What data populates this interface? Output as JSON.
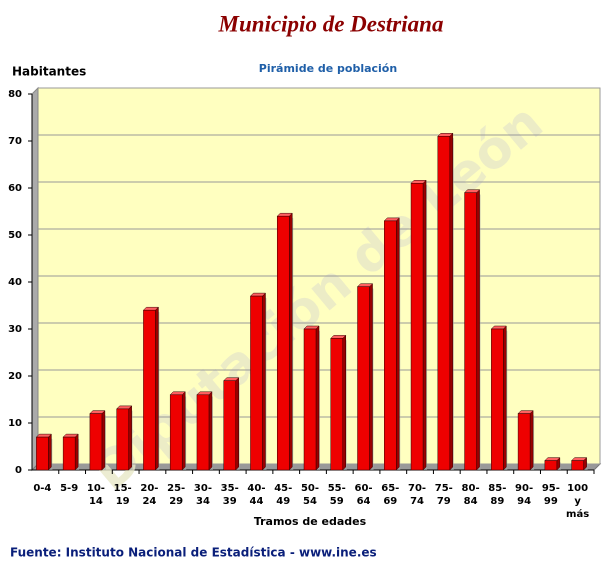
{
  "chart_data": {
    "type": "bar",
    "title": "Municipio de Destriana",
    "subtitle": "Pirámide de población",
    "y_label": "Habitantes",
    "x_label": "Tramos de edades",
    "source": "Fuente: Instituto Nacional de Estadística - www.ine.es",
    "watermark": "Diputación de León",
    "categories": [
      "0-4",
      "5-9",
      "10-\n14",
      "15-\n19",
      "20-\n24",
      "25-\n29",
      "30-\n34",
      "35-\n39",
      "40-\n44",
      "45-\n49",
      "50-\n54",
      "55-\n59",
      "60-\n64",
      "65-\n69",
      "70-\n74",
      "75-\n79",
      "80-\n84",
      "85-\n89",
      "90-\n94",
      "95-\n99",
      "100\ny\nmás"
    ],
    "values": [
      7,
      7,
      12,
      13,
      34,
      16,
      16,
      19,
      37,
      54,
      30,
      28,
      39,
      53,
      61,
      71,
      59,
      30,
      12,
      2,
      2
    ],
    "color": "#ee0000",
    "ylim": [
      0,
      80
    ],
    "yticks": [
      0,
      10,
      20,
      30,
      40,
      50,
      60,
      70,
      80
    ],
    "grid": true
  }
}
